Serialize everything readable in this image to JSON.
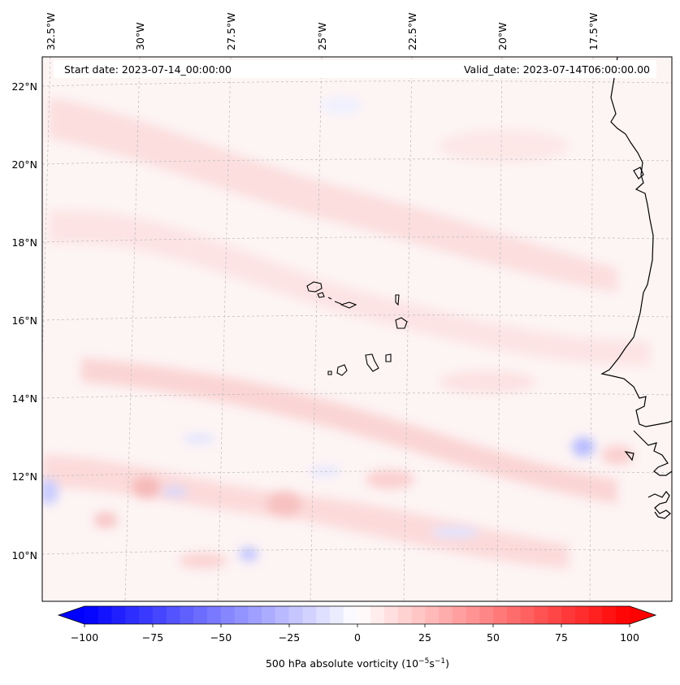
{
  "map": {
    "header": {
      "start_date": "Start date: 2023-07-14_00:00:00",
      "valid_date": "Valid_date: 2023-07-14T06:00:00.00"
    },
    "lon_labels": [
      "32.5°W",
      "30°W",
      "27.5°W",
      "25°W",
      "22.5°W",
      "20°W",
      "17.5°W"
    ],
    "lat_labels": [
      "22°N",
      "20°N",
      "18°N",
      "16°N",
      "14°N",
      "12°N",
      "10°N"
    ],
    "features": {
      "islands": "Cape Verde Islands",
      "coastline": "West African coastline"
    },
    "colors": {
      "background_field": "#fdf3f3",
      "positive_light": "#fde3e3",
      "positive_mid": "#fbcaca",
      "negative_light": "#eef0ff",
      "negative_mid": "#c9ccff",
      "coastline": "#000000",
      "gridline": "#bbbbbb"
    }
  },
  "colorbar": {
    "ticks": [
      "−100",
      "−75",
      "−50",
      "−25",
      "0",
      "25",
      "50",
      "75",
      "100"
    ],
    "title": "500 hPa absolute vorticity (10",
    "title_exp1": "−5",
    "title_mid": "s",
    "title_exp2": "−1",
    "title_end": ")",
    "colormap": "bwr",
    "range": [
      -100,
      100
    ]
  }
}
